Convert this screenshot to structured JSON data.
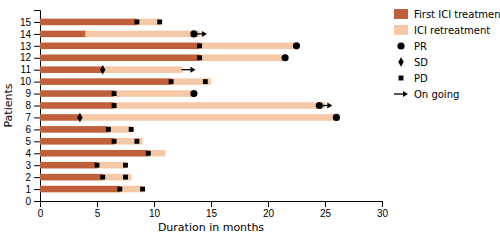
{
  "chart_data": {
    "type": "bar",
    "orientation": "horizontal",
    "stacked": true,
    "xlabel": "Duration in months",
    "ylabel": "Patients",
    "categories": [
      1,
      2,
      3,
      4,
      5,
      6,
      7,
      8,
      9,
      10,
      11,
      12,
      13,
      14,
      15
    ],
    "xlim": [
      0,
      30
    ],
    "xticks": [
      0,
      5,
      10,
      15,
      20,
      25,
      30
    ],
    "ylim": [
      0,
      16
    ],
    "yticks": [
      0,
      1,
      2,
      3,
      4,
      5,
      6,
      7,
      8,
      9,
      10,
      11,
      12,
      13,
      14,
      15
    ],
    "legend": "right",
    "series": [
      {
        "name": "First ICI treatment",
        "color": "#C0603A",
        "values": [
          7.0,
          5.5,
          5.0,
          9.5,
          6.5,
          6.0,
          3.5,
          6.5,
          6.5,
          11.5,
          5.5,
          14.0,
          14.0,
          4.0,
          8.5
        ]
      },
      {
        "name": "ICI retreatment",
        "color": "#F5C9A8",
        "values": [
          2.0,
          2.5,
          2.5,
          1.5,
          2.5,
          2.0,
          22.5,
          18.5,
          7.0,
          3.5,
          7.0,
          7.5,
          8.5,
          10.0,
          2.0
        ]
      },
      {
        "name": "PR",
        "type": "scatter",
        "marker": "circle",
        "color": "black",
        "x": [
          26.0,
          24.5,
          13.5,
          21.5,
          22.5,
          13.5
        ],
        "y": [
          7,
          8,
          9,
          12,
          13,
          14
        ]
      },
      {
        "name": "SD",
        "type": "scatter",
        "marker": "diamond",
        "color": "black",
        "x": [
          3.5,
          5.5
        ],
        "y": [
          7,
          11
        ]
      },
      {
        "name": "PD",
        "type": "scatter",
        "marker": "square",
        "color": "black",
        "x": [
          7.0,
          9.0,
          5.5,
          7.5,
          5.0,
          7.5,
          9.5,
          6.5,
          8.5,
          6.0,
          8.0,
          6.5,
          6.5,
          11.5,
          14.5,
          14.0,
          14.0,
          8.5,
          10.5
        ],
        "y": [
          1,
          1,
          2,
          2,
          3,
          3,
          4,
          5,
          5,
          6,
          6,
          8,
          9,
          10,
          10,
          13,
          12,
          15,
          15
        ]
      },
      {
        "name": "On going",
        "type": "scatter",
        "marker": "arrow",
        "color": "black",
        "x": [
          24.5,
          12.5,
          13.5
        ],
        "y": [
          8,
          11,
          14
        ]
      }
    ]
  }
}
